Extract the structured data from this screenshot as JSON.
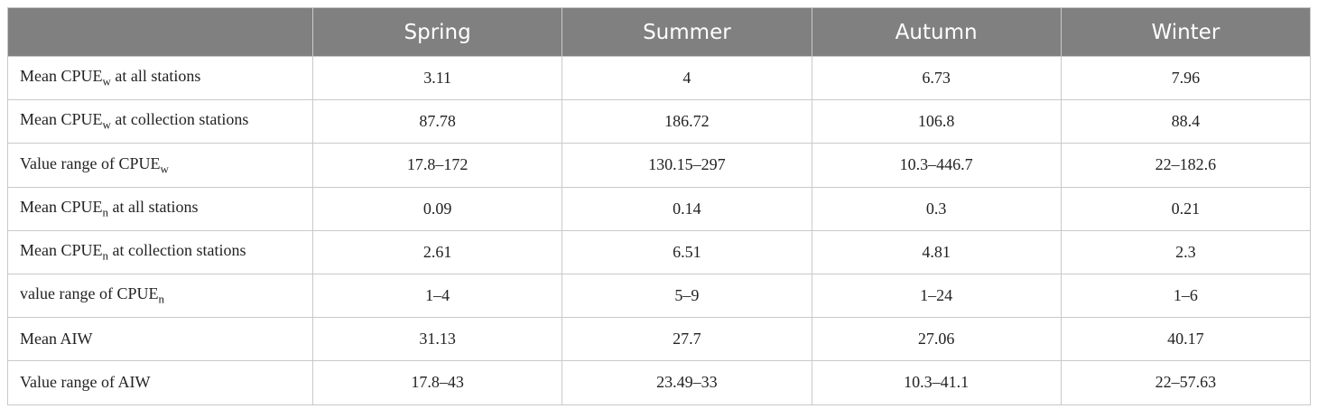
{
  "table": {
    "columns": [
      "Spring",
      "Summer",
      "Autumn",
      "Winter"
    ],
    "rows": [
      {
        "label": {
          "text": "Mean CPUE",
          "sub": "w",
          "rest": " at all stations"
        },
        "values": [
          3.11,
          4,
          6.73,
          7.96
        ]
      },
      {
        "label": {
          "text": "Mean CPUE",
          "sub": "w",
          "rest": " at collection stations"
        },
        "values": [
          87.78,
          186.72,
          106.8,
          88.4
        ]
      },
      {
        "label": {
          "text": "Value range of CPUE",
          "sub": "w"
        },
        "values": [
          "17.8–172",
          "130.15–297",
          "10.3–446.7",
          "22–182.6"
        ]
      },
      {
        "label": {
          "text": "Mean CPUE",
          "sub": "n",
          "rest": " at all stations"
        },
        "values": [
          0.09,
          0.14,
          0.3,
          0.21
        ]
      },
      {
        "label": {
          "text": "Mean CPUE",
          "sub": "n",
          "rest": " at collection stations"
        },
        "values": [
          2.61,
          6.51,
          4.81,
          2.3
        ]
      },
      {
        "label": {
          "text": "value range of CPUE",
          "sub": "n"
        },
        "values": [
          "1–4",
          "5–9",
          "1–24",
          "1–6"
        ]
      },
      {
        "label": {
          "text": "Mean AIW"
        },
        "values": [
          31.13,
          27.7,
          27.06,
          40.17
        ]
      },
      {
        "label": {
          "text": "Value range of AIW"
        },
        "values": [
          "17.8–43",
          "23.49–33",
          "10.3–41.1",
          "22–57.63"
        ]
      }
    ]
  }
}
